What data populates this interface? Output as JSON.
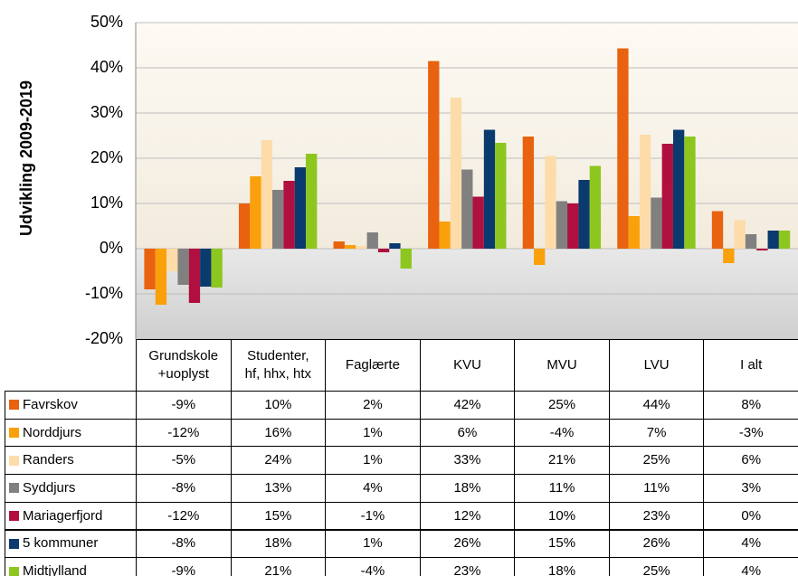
{
  "chart_data": {
    "type": "bar",
    "y_label": "Udvikling 2009-2019",
    "categories": [
      "Grundskole\n+uoplyst",
      "Studenter,\nhf, hhx, htx",
      "Faglærte",
      "KVU",
      "MVU",
      "LVU",
      "I alt"
    ],
    "ylim": [
      -20,
      50
    ],
    "yticks": [
      {
        "value": -20,
        "label": "-20%"
      },
      {
        "value": -10,
        "label": "-10%"
      },
      {
        "value": 0,
        "label": "0%"
      },
      {
        "value": 10,
        "label": "10%"
      },
      {
        "value": 20,
        "label": "20%"
      },
      {
        "value": 30,
        "label": "30%"
      },
      {
        "value": 40,
        "label": "40%"
      },
      {
        "value": 50,
        "label": "50%"
      }
    ],
    "grid": true,
    "series": [
      {
        "name": "Favrskov",
        "color": "#e8620f",
        "values": [
          -9,
          10,
          1.6,
          41.5,
          24.8,
          44.3,
          8.3
        ],
        "value_labels": [
          "-9%",
          "10%",
          "2%",
          "42%",
          "25%",
          "44%",
          "8%"
        ]
      },
      {
        "name": "Norddjurs",
        "color": "#f9a00b",
        "values": [
          -12.4,
          16,
          0.8,
          6,
          -3.6,
          7.2,
          -3.2
        ],
        "value_labels": [
          "-12%",
          "16%",
          "1%",
          "6%",
          "-4%",
          "7%",
          "-3%"
        ]
      },
      {
        "name": "Randers",
        "color": "#fddcaa",
        "values": [
          -5,
          24,
          0.6,
          33.4,
          20.5,
          25.2,
          6.3
        ],
        "value_labels": [
          "-5%",
          "24%",
          "1%",
          "33%",
          "21%",
          "25%",
          "6%"
        ]
      },
      {
        "name": "Syddjurs",
        "color": "#808080",
        "values": [
          -8,
          13,
          3.6,
          17.5,
          10.5,
          11.3,
          3.2
        ],
        "value_labels": [
          "-8%",
          "13%",
          "4%",
          "18%",
          "11%",
          "11%",
          "3%"
        ]
      },
      {
        "name": "Mariagerfjord",
        "color": "#b0103f",
        "values": [
          -12,
          15,
          -0.8,
          11.5,
          10,
          23.2,
          -0.4
        ],
        "value_labels": [
          "-12%",
          "15%",
          "-1%",
          "12%",
          "10%",
          "23%",
          "0%"
        ]
      },
      {
        "name": "5 kommuner",
        "color": "#0a3a6e",
        "values": [
          -8.4,
          18,
          1.2,
          26.3,
          15.2,
          26.3,
          4
        ],
        "value_labels": [
          "-8%",
          "18%",
          "1%",
          "26%",
          "15%",
          "26%",
          "4%"
        ]
      },
      {
        "name": "Midtjylland",
        "color": "#8dc61e",
        "values": [
          -8.6,
          21,
          -4.4,
          23.4,
          18.3,
          24.8,
          4
        ],
        "value_labels": [
          "-9%",
          "21%",
          "-4%",
          "23%",
          "18%",
          "25%",
          "4%"
        ]
      }
    ]
  }
}
